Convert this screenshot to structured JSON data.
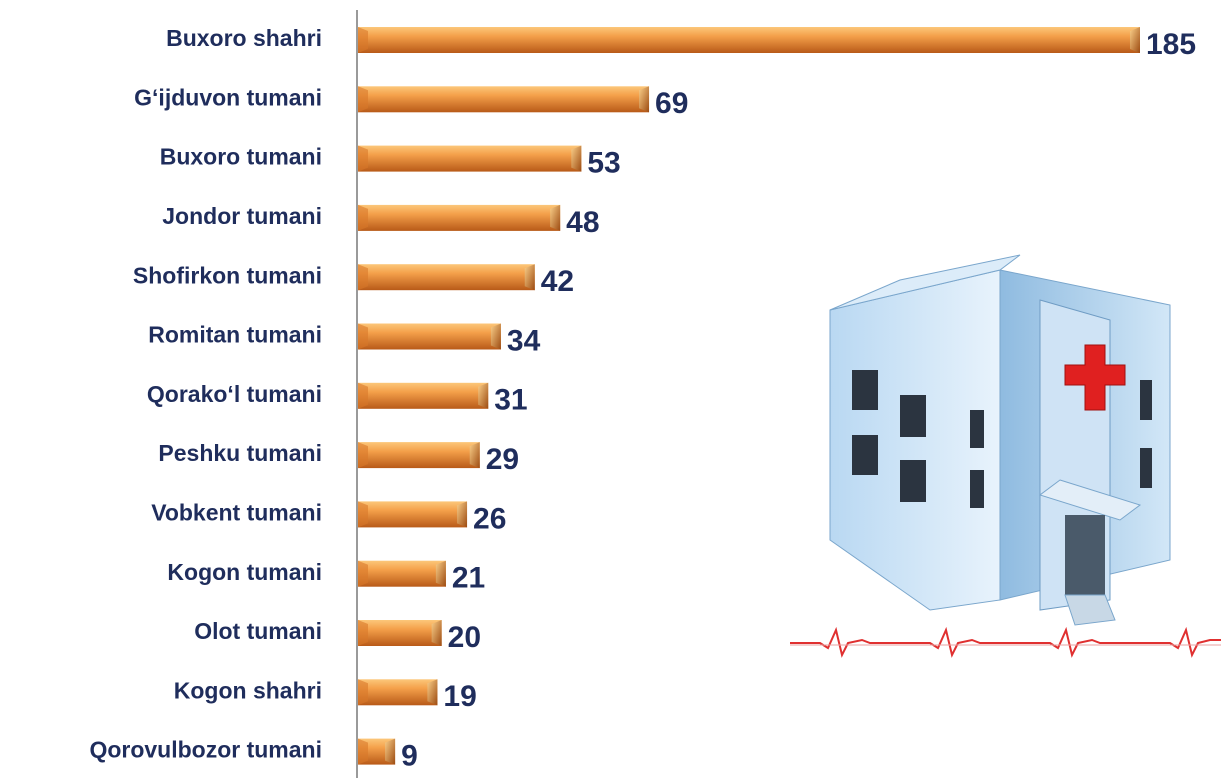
{
  "chart_data": {
    "type": "bar",
    "orientation": "horizontal",
    "categories": [
      "Buxoro shahri",
      "G‘ijduvon tumani",
      "Buxoro tumani",
      "Jondor tumani",
      "Shofirkon tumani",
      "Romitan tumani",
      "Qorako‘l tumani",
      "Peshku tumani",
      "Vobkent tumani",
      "Kogon tumani",
      "Olot tumani",
      "Kogon shahri",
      "Qorovulbozor tumani"
    ],
    "values": [
      185,
      69,
      53,
      48,
      42,
      34,
      31,
      29,
      26,
      21,
      20,
      19,
      9
    ],
    "color": "#e8872e"
  }
}
